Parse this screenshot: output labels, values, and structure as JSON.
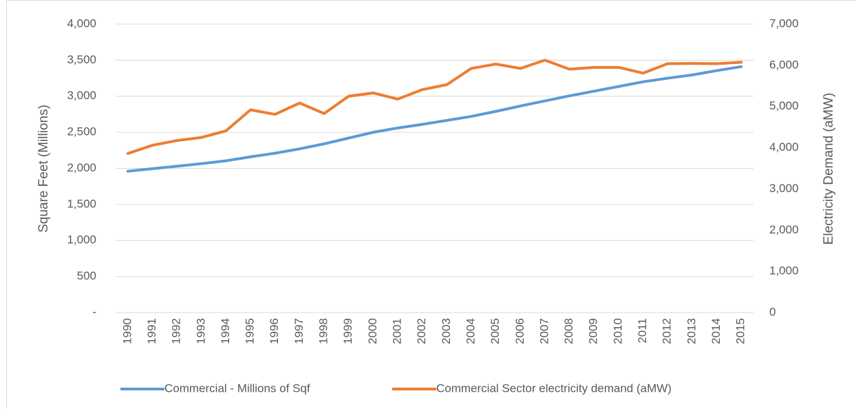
{
  "chart_data": {
    "type": "line",
    "categories": [
      "1990",
      "1991",
      "1992",
      "1993",
      "1994",
      "1995",
      "1996",
      "1997",
      "1998",
      "1999",
      "2000",
      "2001",
      "2002",
      "2003",
      "2004",
      "2005",
      "2006",
      "2007",
      "2008",
      "2009",
      "2010",
      "2011",
      "2012",
      "2013",
      "2014",
      "2015"
    ],
    "y_label": "Square Feet (Millions)",
    "y2_label": "Electricity Demand (aMW)",
    "ylim": [
      0,
      4000
    ],
    "yticks": [
      {
        "value": 0,
        "label": "-"
      },
      500,
      {
        "value": 1000,
        "label": "1,000"
      },
      {
        "value": 1500,
        "label": "1,500"
      },
      {
        "value": 2000,
        "label": "2,000"
      },
      {
        "value": 2500,
        "label": "2,500"
      },
      {
        "value": 3000,
        "label": "3,000"
      },
      {
        "value": 3500,
        "label": "3,500"
      },
      {
        "value": 4000,
        "label": "4,000"
      }
    ],
    "y2lim": [
      0,
      7000
    ],
    "y2ticks": [
      0,
      {
        "value": 1000,
        "label": "1,000"
      },
      {
        "value": 2000,
        "label": "2,000"
      },
      {
        "value": 3000,
        "label": "3,000"
      },
      {
        "value": 4000,
        "label": "4,000"
      },
      {
        "value": 5000,
        "label": "5,000"
      },
      {
        "value": 6000,
        "label": "6,000"
      },
      {
        "value": 7000,
        "label": "7,000"
      }
    ],
    "grid": true,
    "legend": "bottom",
    "series": [
      {
        "name": "Commercial - Millions of Sqf",
        "color": "#5b9bd5",
        "values": [
          1960,
          1995,
          2030,
          2065,
          2105,
          2160,
          2210,
          2270,
          2340,
          2420,
          2500,
          2560,
          2610,
          2665,
          2720,
          2790,
          2865,
          2935,
          3005,
          3070,
          3135,
          3200,
          3250,
          3295,
          3355,
          3410
        ]
      },
      {
        "name": "Commercial Sector  electricity demand (aMW)",
        "color": "#ed7d31",
        "axis": "y2",
        "values": [
          3860,
          4060,
          4175,
          4250,
          4410,
          4920,
          4810,
          5085,
          4830,
          5250,
          5330,
          5180,
          5410,
          5530,
          5925,
          6030,
          5925,
          6125,
          5905,
          5950,
          5950,
          5810,
          6040,
          6045,
          6040,
          6075
        ]
      }
    ]
  }
}
